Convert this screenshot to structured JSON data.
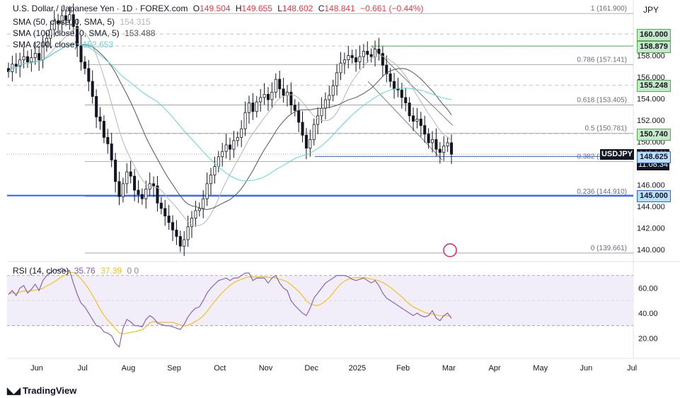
{
  "header": {
    "symbol_line": "U.S. Dollar / Japanese Yen · 1D · FOREX.com",
    "open_label": "O",
    "open": "149.504",
    "high_label": "H",
    "high": "149.655",
    "low_label": "L",
    "low": "148.602",
    "close_label": "C",
    "close": "148.841",
    "change": "−0.661 (−0.44%)",
    "sma50": "SMA (50, close, 0, SMA, 5)",
    "sma50_value": "154.315",
    "sma100": "SMA (100, close, 0, SMA, 5)",
    "sma100_value": "153.488",
    "sma200": "SMA (200, close)",
    "sma200_value": "152.653"
  },
  "currency": "JPY",
  "colors": {
    "up": "#131722",
    "down": "#131722",
    "sma50": "#b5b5b5",
    "sma100": "#555555",
    "sma200": "#5fd4d8",
    "rsi": "#7e57c2",
    "rsi_ma": "#f0c419",
    "support": "#2962ff",
    "resistance": "#4caf50"
  },
  "chart_data": [
    {
      "type": "candlestick",
      "y_axis": [
        140,
        142,
        144,
        146,
        148,
        150,
        152,
        154,
        156,
        158,
        160
      ],
      "y_axis_labels": [
        "140.000",
        "142.000",
        "144.000",
        "146.000",
        "148.000",
        "150.000",
        "152.000",
        "154.000",
        "156.000",
        "158.000",
        "160.000"
      ],
      "ylim": [
        139,
        162.5
      ],
      "x_axis_labels": [
        "Jun",
        "Jul",
        "Aug",
        "Sep",
        "Oct",
        "Nov",
        "Dec",
        "2025",
        "Feb",
        "Mar",
        "Apr",
        "May",
        "Jun",
        "Jul"
      ],
      "fib_levels": [
        {
          "label": "1 (161.900)",
          "value": 161.9
        },
        {
          "label": "0.786 (157.141)",
          "value": 157.141
        },
        {
          "label": "0.618 (153.405)",
          "value": 153.405
        },
        {
          "label": "0.5 (150.781)",
          "value": 150.781
        },
        {
          "label": "0.382 (148.158)",
          "value": 148.158
        },
        {
          "label": "0.236 (144.910)",
          "value": 144.91
        },
        {
          "label": "0 (139.661)",
          "value": 139.661
        }
      ],
      "price_tags": [
        {
          "label": "160.000",
          "value": 160.0,
          "kind": "resistance"
        },
        {
          "label": "158.879",
          "value": 158.879,
          "kind": "resistance"
        },
        {
          "label": "155.248",
          "value": 155.248,
          "kind": "resistance"
        },
        {
          "label": "150.740",
          "value": 150.74,
          "kind": "resistance"
        },
        {
          "label": "148.841",
          "value": 148.841,
          "kind": "last"
        },
        {
          "label": "11:08:34",
          "value": 147.85,
          "kind": "timer"
        },
        {
          "label": "148.625",
          "value": 148.625,
          "kind": "support"
        },
        {
          "label": "145.000",
          "value": 145.0,
          "kind": "support"
        }
      ],
      "last_symbol": "USDJPY",
      "close_series": [
        156.5,
        157.2,
        157.0,
        157.6,
        157.9,
        157.4,
        157.8,
        158.2,
        157.6,
        158.9,
        159.6,
        160.4,
        161.2,
        161.0,
        161.7,
        161.3,
        161.8,
        160.7,
        158.9,
        157.4,
        156.8,
        155.6,
        154.2,
        152.3,
        151.9,
        150.4,
        149.8,
        148.3,
        146.3,
        144.9,
        146.1,
        147.2,
        146.8,
        145.5,
        145.1,
        144.7,
        145.6,
        146.1,
        145.9,
        144.3,
        143.8,
        143.1,
        142.5,
        141.8,
        141.2,
        140.3,
        140.9,
        142.1,
        142.9,
        143.6,
        143.8,
        144.7,
        146.1,
        146.9,
        147.7,
        148.6,
        149.1,
        149.7,
        149.3,
        150.1,
        150.4,
        151.2,
        152.7,
        153.6,
        152.8,
        153.7,
        154.1,
        154.4,
        153.9,
        154.6,
        155.8,
        154.9,
        154.3,
        154.6,
        153.4,
        152.9,
        151.8,
        150.6,
        149.4,
        150.2,
        151.6,
        152.4,
        153.1,
        153.9,
        154.3,
        155.2,
        156.4,
        157.3,
        157.6,
        158.0,
        157.8,
        157.4,
        157.9,
        158.4,
        158.1,
        157.9,
        158.6,
        158.2,
        157.1,
        156.3,
        155.6,
        154.9,
        154.8,
        154.1,
        153.6,
        152.4,
        151.9,
        152.1,
        151.5,
        150.7,
        149.9,
        150.2,
        149.3,
        149.0,
        149.6,
        149.9,
        148.84
      ],
      "rsi": {
        "label": "RSI (14, close)",
        "rsi_value": "35.76",
        "ma_value": "37.39",
        "extra": "0  0",
        "y_axis_labels": [
          "20.00",
          "40.00",
          "60.00"
        ],
        "y_axis": [
          20,
          40,
          60
        ],
        "ylim": [
          5,
          80
        ],
        "band": [
          30,
          70
        ],
        "mid": 50,
        "values": [
          55,
          58,
          54,
          60,
          62,
          56,
          59,
          63,
          58,
          66,
          70,
          72,
          75,
          74,
          76,
          73,
          74,
          64,
          55,
          48,
          45,
          40,
          35,
          30,
          29,
          25,
          24,
          22,
          16,
          13,
          28,
          35,
          33,
          30,
          30,
          29,
          35,
          38,
          36,
          32,
          31,
          30,
          30,
          29,
          28,
          27,
          31,
          37,
          41,
          44,
          45,
          50,
          56,
          60,
          63,
          66,
          67,
          68,
          66,
          68,
          68,
          70,
          72,
          72,
          66,
          68,
          68,
          68,
          64,
          68,
          70,
          64,
          60,
          58,
          50,
          46,
          43,
          40,
          38,
          44,
          52,
          56,
          60,
          64,
          66,
          68,
          70,
          70,
          70,
          69,
          67,
          66,
          67,
          68,
          66,
          64,
          66,
          62,
          56,
          52,
          50,
          48,
          46,
          44,
          42,
          40,
          38,
          40,
          38,
          37,
          38,
          42,
          36,
          34,
          38,
          40,
          35.76
        ]
      }
    }
  ],
  "brand": "TradingView"
}
